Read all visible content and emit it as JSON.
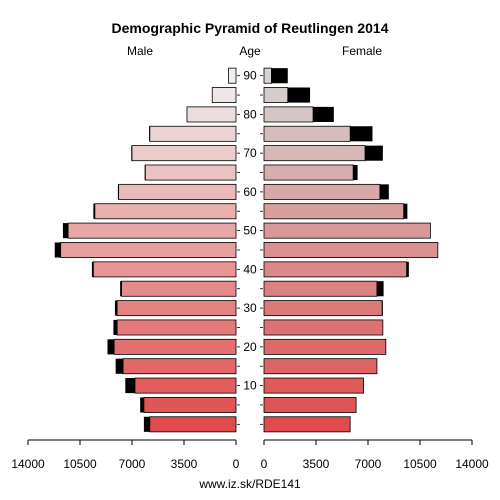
{
  "chart_data": {
    "type": "bar",
    "title": "Demographic Pyramid of Reutlingen 2014",
    "male_label": "Male",
    "age_label": "Age",
    "female_label": "Female",
    "source": "www.iz.sk/RDE141",
    "xlim": [
      0,
      14000
    ],
    "x_ticks": [
      "14000",
      "10500",
      "7000",
      "3500",
      "0",
      "0",
      "3500",
      "7000",
      "10500",
      "14000"
    ],
    "age_ticks": [
      "10",
      "20",
      "30",
      "40",
      "50",
      "60",
      "70",
      "80",
      "90"
    ],
    "age_groups": [
      "0-4",
      "5-9",
      "10-14",
      "15-19",
      "20-24",
      "25-29",
      "30-34",
      "35-39",
      "40-44",
      "45-49",
      "50-54",
      "55-59",
      "60-64",
      "65-69",
      "70-74",
      "75-79",
      "80-84",
      "85-89",
      "90+"
    ],
    "male": [
      [
        5800,
        400
      ],
      [
        6200,
        250
      ],
      [
        6800,
        650
      ],
      [
        7600,
        500
      ],
      [
        8200,
        450
      ],
      [
        8000,
        250
      ],
      [
        8000,
        150
      ],
      [
        7700,
        100
      ],
      [
        9600,
        100
      ],
      [
        11800,
        400
      ],
      [
        11300,
        350
      ],
      [
        9500,
        100
      ],
      [
        7900,
        50
      ],
      [
        6100,
        50
      ],
      [
        7000,
        50
      ],
      [
        5800,
        50
      ],
      [
        3300,
        0
      ],
      [
        1600,
        0
      ],
      [
        500,
        0
      ]
    ],
    "female": [
      [
        5800,
        0
      ],
      [
        6200,
        0
      ],
      [
        6700,
        0
      ],
      [
        7600,
        0
      ],
      [
        8200,
        0
      ],
      [
        8000,
        0
      ],
      [
        7950,
        50
      ],
      [
        7600,
        450
      ],
      [
        9600,
        150
      ],
      [
        11700,
        0
      ],
      [
        11200,
        0
      ],
      [
        9400,
        250
      ],
      [
        7800,
        600
      ],
      [
        6000,
        300
      ],
      [
        6800,
        1200
      ],
      [
        5800,
        1500
      ],
      [
        3300,
        1400
      ],
      [
        1600,
        1500
      ],
      [
        500,
        1100
      ]
    ]
  }
}
